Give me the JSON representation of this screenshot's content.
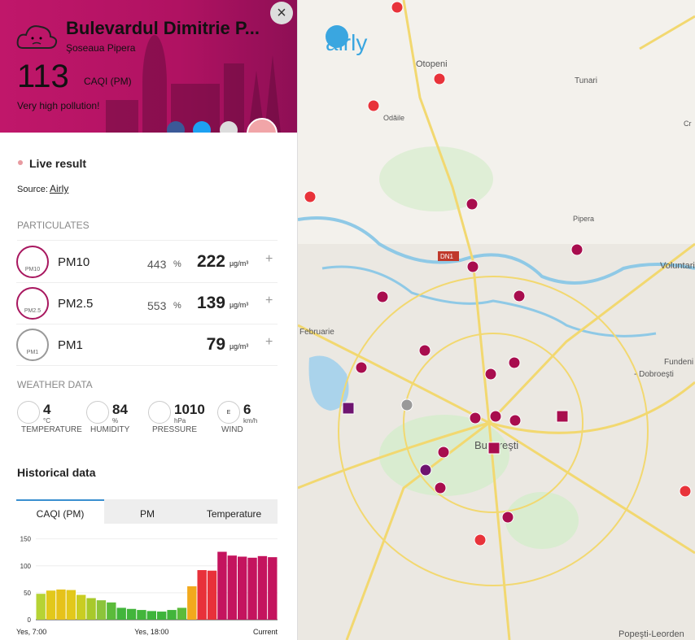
{
  "header": {
    "title": "Bulevardul Dimitrie P...",
    "subtitle": "Şoseaua Pipera",
    "index": "113",
    "index_unit": "CAQI (PM)",
    "status": "Very high pollution!"
  },
  "live": {
    "label": "Live result",
    "source_label": "Source:",
    "source": "Airly"
  },
  "particulates": {
    "heading": "PARTICULATES",
    "rows": [
      {
        "icon": "PM10",
        "name": "PM10",
        "norm": "443",
        "norm_unit": "%",
        "value": "222",
        "unit": "µg/m³"
      },
      {
        "icon": "PM2.5",
        "name": "PM2.5",
        "norm": "553",
        "norm_unit": "%",
        "value": "139",
        "unit": "µg/m³"
      },
      {
        "icon": "PM1",
        "name": "PM1",
        "value": "79",
        "unit": "µg/m³"
      }
    ]
  },
  "weather": {
    "heading": "WEATHER DATA",
    "items": [
      {
        "value": "4",
        "unit": "°C",
        "label": "TEMPERATURE"
      },
      {
        "value": "84",
        "unit": "%",
        "label": "HUMIDITY"
      },
      {
        "value": "1010",
        "unit": "hPa",
        "label": "PRESSURE"
      },
      {
        "value": "6",
        "unit": "km/h",
        "label": "WIND",
        "direction": "E"
      }
    ]
  },
  "history": {
    "heading": "Historical data",
    "tabs": [
      "CAQI (PM)",
      "PM",
      "Temperature"
    ]
  },
  "chart_data": {
    "type": "bar",
    "categories": [
      "Yes, 7:00",
      null,
      null,
      null,
      null,
      null,
      null,
      null,
      null,
      null,
      null,
      "Yes, 18:00",
      null,
      null,
      null,
      null,
      null,
      null,
      null,
      null,
      null,
      null,
      null,
      "Current"
    ],
    "values": [
      48,
      54,
      56,
      55,
      46,
      40,
      36,
      32,
      22,
      20,
      18,
      16,
      15,
      18,
      22,
      62,
      92,
      91,
      126,
      119,
      117,
      115,
      118,
      116
    ],
    "colors": [
      "#b6d334",
      "#e2c81b",
      "#e6c21a",
      "#e2c81b",
      "#c9cd22",
      "#a8c92b",
      "#8cc43a",
      "#5bbb3a",
      "#42b53b",
      "#42b53b",
      "#42b53b",
      "#3eb43b",
      "#3eb43b",
      "#42b53b",
      "#5bbb3a",
      "#f2a91d",
      "#e8313a",
      "#e8313a",
      "#c4145e",
      "#c4145e",
      "#c4145e",
      "#c4145e",
      "#c4145e",
      "#c4145e"
    ],
    "ylim": [
      0,
      160
    ],
    "yticks": [
      0,
      50,
      100,
      150
    ],
    "grid": true
  },
  "map": {
    "brand": "airly",
    "labels": [
      "Otopeni",
      "Tunari",
      "Odăile",
      "Pipera",
      "DN1",
      "Voluntari",
      "Februarie",
      "Fundeni",
      "- Dobroeşti",
      "Bucureşti",
      "Popeşti-Leorden",
      "Cr"
    ]
  }
}
